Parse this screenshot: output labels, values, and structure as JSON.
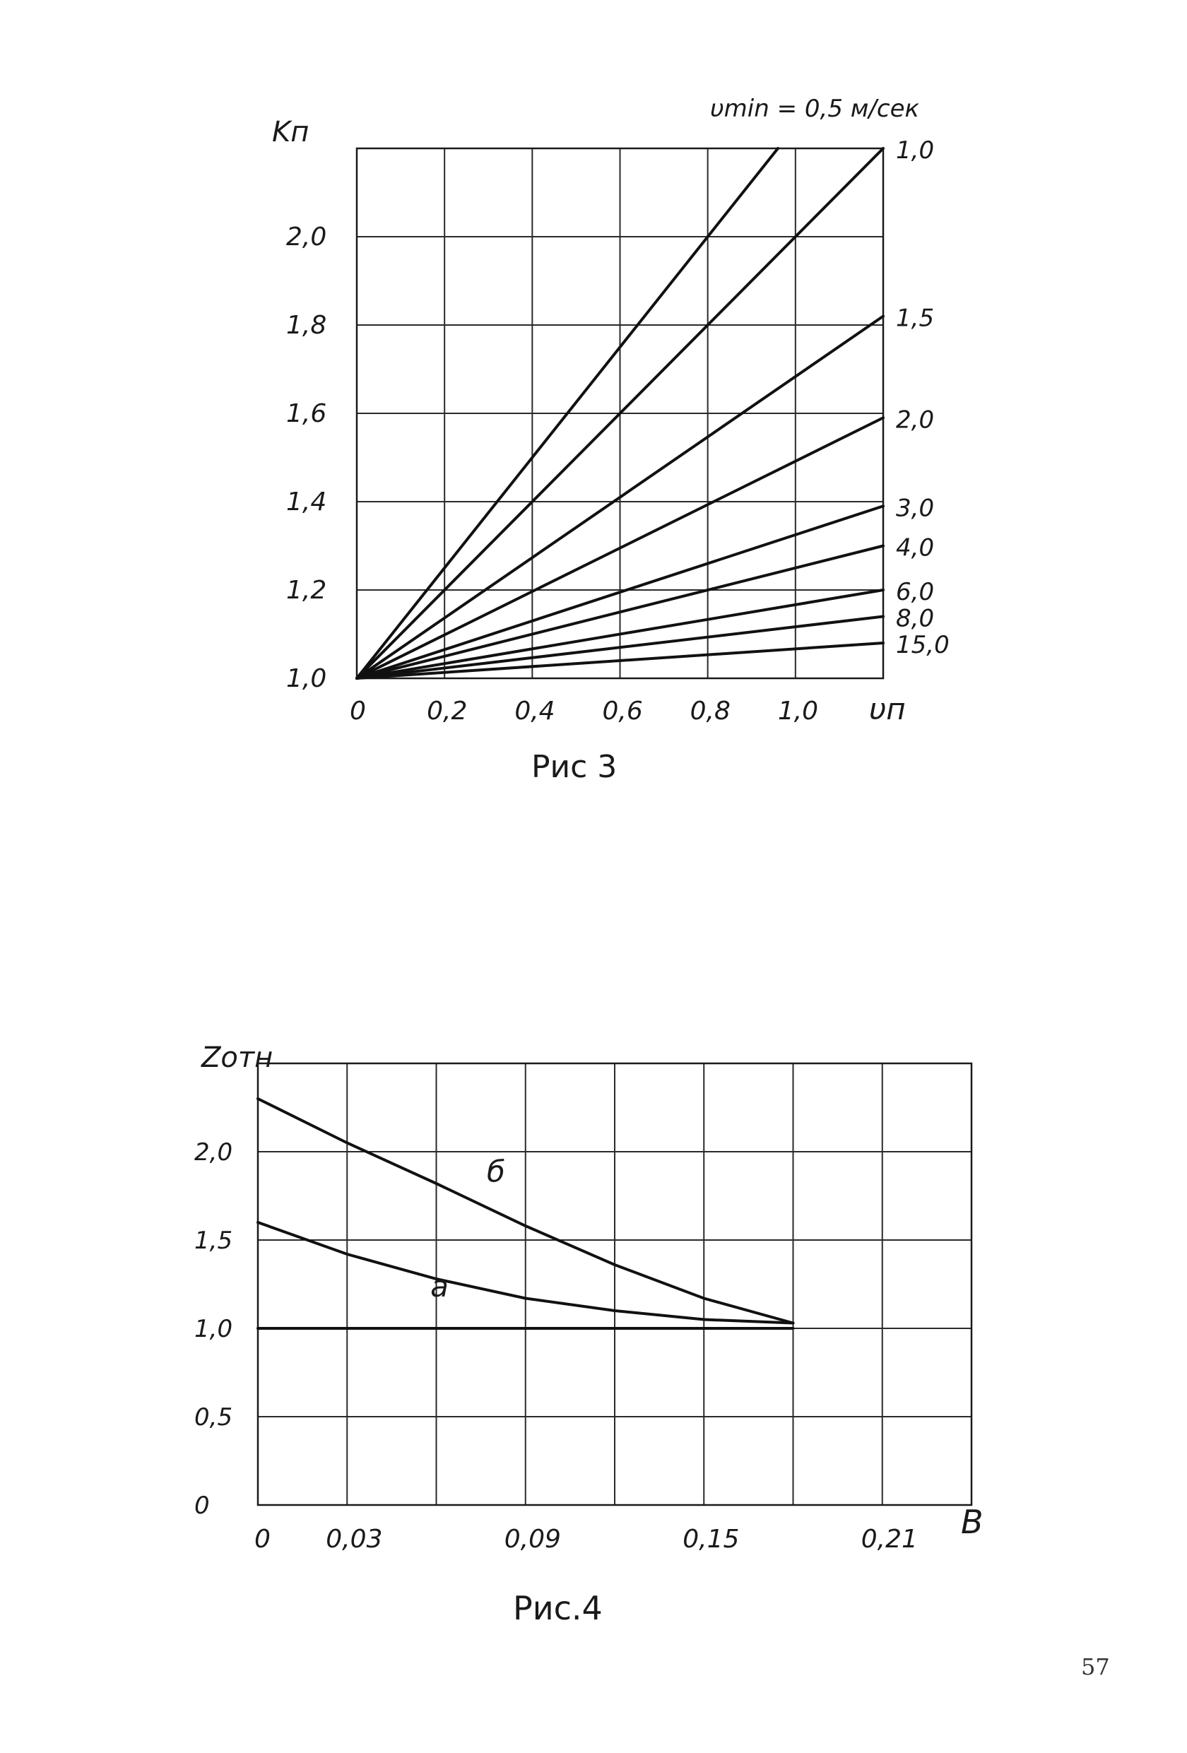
{
  "page_number": "57",
  "chart_data": [
    {
      "type": "line",
      "caption": "Рис 3",
      "ylabel": "Kп",
      "xlabel": "υп",
      "header": "υmin = 0,5 м/сек",
      "xlim": [
        0,
        1.2
      ],
      "ylim": [
        1.0,
        2.2
      ],
      "x_ticks": [
        "0",
        "0,2",
        "0,4",
        "0,6",
        "0,8",
        "1,0"
      ],
      "x_tick_values": [
        0,
        0.2,
        0.4,
        0.6,
        0.8,
        1.0
      ],
      "y_ticks": [
        "1,0",
        "1,2",
        "1,4",
        "1,6",
        "1,8",
        "2,0"
      ],
      "y_tick_values": [
        1.0,
        1.2,
        1.4,
        1.6,
        1.8,
        2.0
      ],
      "grid": true,
      "series": [
        {
          "name": "",
          "x": [
            0,
            0.96
          ],
          "y": [
            1.0,
            2.2
          ]
        },
        {
          "name": "1,0",
          "x": [
            0,
            1.2
          ],
          "y": [
            1.0,
            2.2
          ]
        },
        {
          "name": "1,5",
          "x": [
            0,
            1.2
          ],
          "y": [
            1.0,
            1.82
          ]
        },
        {
          "name": "2,0",
          "x": [
            0,
            1.2
          ],
          "y": [
            1.0,
            1.59
          ]
        },
        {
          "name": "3,0",
          "x": [
            0,
            1.2
          ],
          "y": [
            1.0,
            1.39
          ]
        },
        {
          "name": "4,0",
          "x": [
            0,
            1.2
          ],
          "y": [
            1.0,
            1.3
          ]
        },
        {
          "name": "6,0",
          "x": [
            0,
            1.2
          ],
          "y": [
            1.0,
            1.2
          ]
        },
        {
          "name": "8,0",
          "x": [
            0,
            1.2
          ],
          "y": [
            1.0,
            1.14
          ]
        },
        {
          "name": "15,0",
          "x": [
            0,
            1.2
          ],
          "y": [
            1.0,
            1.08
          ]
        }
      ]
    },
    {
      "type": "line",
      "caption": "Рис.4",
      "ylabel": "Zотн",
      "xlabel": "B",
      "xlim": [
        0,
        0.24
      ],
      "ylim": [
        0,
        2.5
      ],
      "x_ticks": [
        "0",
        "0,03",
        "0,09",
        "0,15",
        "0,21"
      ],
      "x_tick_values": [
        0,
        0.03,
        0.09,
        0.15,
        0.21
      ],
      "y_ticks": [
        "0",
        "0,5",
        "1,0",
        "1,5",
        "2,0"
      ],
      "y_tick_values": [
        0,
        0.5,
        1.0,
        1.5,
        2.0
      ],
      "grid": true,
      "series": [
        {
          "name": "а",
          "x": [
            0,
            0.03,
            0.06,
            0.09,
            0.12,
            0.15,
            0.18
          ],
          "y": [
            1.6,
            1.42,
            1.28,
            1.17,
            1.1,
            1.05,
            1.03
          ]
        },
        {
          "name": "б",
          "x": [
            0,
            0.03,
            0.06,
            0.09,
            0.12,
            0.15,
            0.18
          ],
          "y": [
            2.3,
            2.05,
            1.82,
            1.58,
            1.36,
            1.17,
            1.03
          ]
        }
      ]
    }
  ]
}
